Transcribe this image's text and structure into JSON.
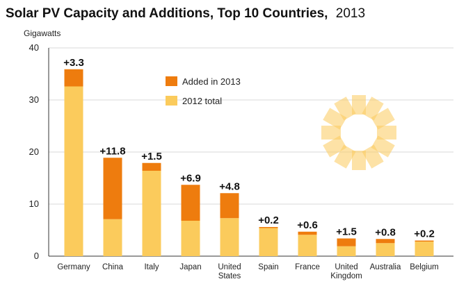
{
  "chart_data": {
    "type": "bar",
    "stacked": true,
    "title": "Solar PV Capacity and Additions, Top 10 Countries,",
    "title_year": "2013",
    "ylabel": "Gigawatts",
    "ylim": [
      0,
      40
    ],
    "yticks": [
      0,
      10,
      20,
      30,
      40
    ],
    "grid": true,
    "legend_position": "top-center",
    "categories": [
      [
        "Germany"
      ],
      [
        "China"
      ],
      [
        "Italy"
      ],
      [
        "Japan"
      ],
      [
        "United",
        "States"
      ],
      [
        "Spain"
      ],
      [
        "France"
      ],
      [
        "United",
        "Kingdom"
      ],
      [
        "Australia"
      ],
      [
        "Belgium"
      ]
    ],
    "series": [
      {
        "name": "2012 total",
        "color": "#FBCB5C",
        "values": [
          32.6,
          7.1,
          16.4,
          6.8,
          7.3,
          5.4,
          4.1,
          1.9,
          2.5,
          2.8
        ]
      },
      {
        "name": "Added in 2013",
        "color": "#EE7C0E",
        "values": [
          3.3,
          11.8,
          1.5,
          6.9,
          4.8,
          0.2,
          0.6,
          1.5,
          0.8,
          0.2
        ]
      }
    ],
    "addition_labels": [
      "+3.3",
      "+11.8",
      "+1.5",
      "+6.9",
      "+4.8",
      "+0.2",
      "+0.6",
      "+1.5",
      "+0.8",
      "+0.2"
    ]
  }
}
